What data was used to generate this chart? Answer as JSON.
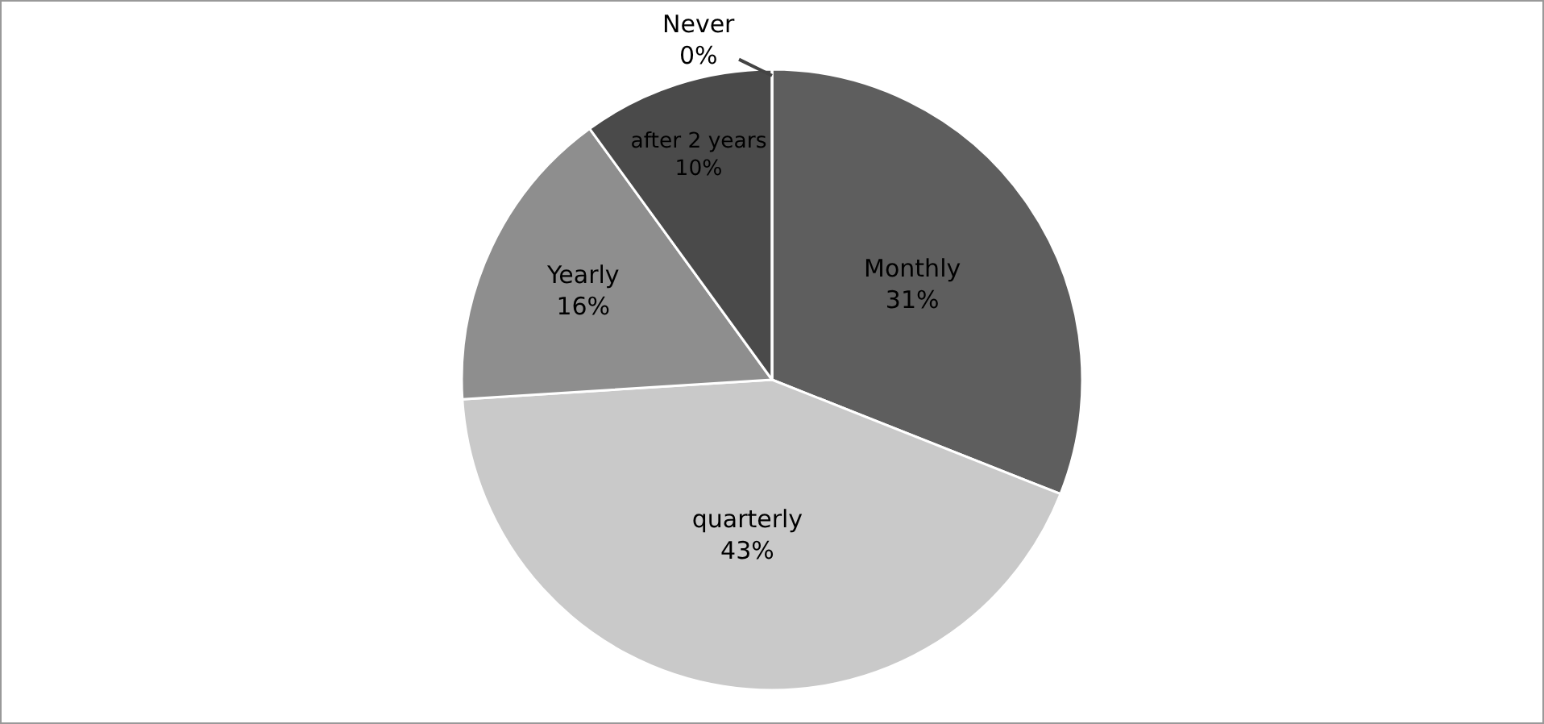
{
  "chart_data": {
    "type": "pie",
    "categories": [
      "Monthly",
      "quarterly",
      "Yearly",
      "after 2 years",
      "Never"
    ],
    "values": [
      31,
      43,
      16,
      10,
      0
    ],
    "value_labels": [
      "31%",
      "43%",
      "16%",
      "10%",
      "0%"
    ],
    "colors": [
      "#5e5e5e",
      "#c9c9c9",
      "#8e8e8e",
      "#4a4a4a",
      "#333333"
    ],
    "legend": false
  }
}
